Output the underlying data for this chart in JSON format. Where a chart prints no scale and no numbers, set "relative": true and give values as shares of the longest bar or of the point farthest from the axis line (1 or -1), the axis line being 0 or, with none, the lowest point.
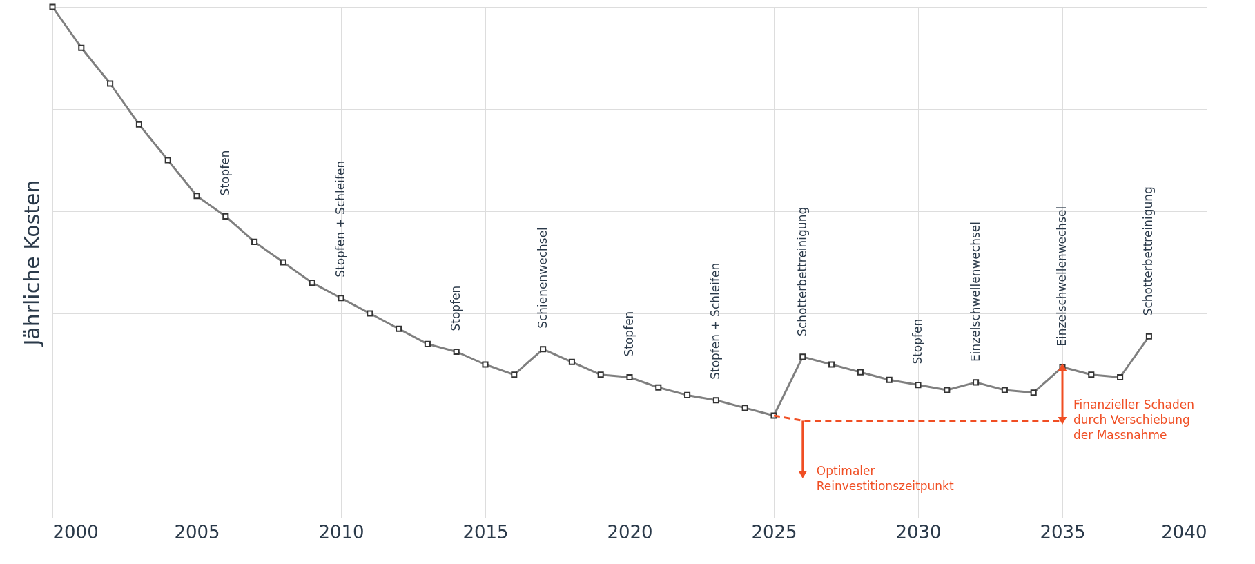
{
  "chart_data": {
    "type": "line",
    "relative": true,
    "ylabel": "Jährliche Kosten",
    "xlim": [
      2000,
      2040
    ],
    "xticks": [
      2000,
      2005,
      2010,
      2015,
      2020,
      2025,
      2030,
      2035,
      2040
    ],
    "grid": true,
    "x": [
      2000,
      2001,
      2002,
      2003,
      2004,
      2005,
      2006,
      2007,
      2008,
      2009,
      2010,
      2011,
      2012,
      2013,
      2014,
      2015,
      2016,
      2017,
      2018,
      2019,
      2020,
      2021,
      2022,
      2023,
      2024,
      2025,
      2026,
      2027,
      2028,
      2029,
      2030,
      2031,
      2032,
      2033,
      2034,
      2035,
      2036,
      2037,
      2038
    ],
    "series": [
      {
        "color": "#7f7f7f",
        "marker": "square",
        "values": [
          1,
          0.92,
          0.85,
          0.77,
          0.7,
          0.63,
          0.59,
          0.54,
          0.5,
          0.46,
          0.43,
          0.4,
          0.37,
          0.34,
          0.325,
          0.3,
          0.28,
          0.33,
          0.305,
          0.28,
          0.275,
          0.255,
          0.24,
          0.23,
          0.215,
          0.2,
          0.315,
          0.3,
          0.285,
          0.27,
          0.26,
          0.25,
          0.265,
          0.25,
          0.245,
          0.295,
          0.28,
          0.275,
          0.355
        ]
      },
      {
        "type": "line",
        "color": "#f04e23",
        "line_style": "dashed",
        "marker": "none",
        "x": [
          2025,
          2026,
          2035
        ],
        "values": [
          0.2,
          0.19,
          0.19
        ]
      }
    ],
    "annotations": [
      {
        "text": "Stopfen",
        "x": 2006,
        "y": 0.59
      },
      {
        "text": "Stopfen + Schleifen",
        "x": 2010,
        "y": 0.43
      },
      {
        "text": "Stopfen",
        "x": 2014,
        "y": 0.325
      },
      {
        "text": "Schienenwechsel",
        "x": 2017,
        "y": 0.33
      },
      {
        "text": "Stopfen",
        "x": 2020,
        "y": 0.275
      },
      {
        "text": "Stopfen + Schleifen",
        "x": 2023,
        "y": 0.23
      },
      {
        "text": "Schotterbettreinigung",
        "x": 2026,
        "y": 0.315
      },
      {
        "text": "Stopfen",
        "x": 2030,
        "y": 0.26
      },
      {
        "text": "Einzelschwellenwechsel",
        "x": 2032,
        "y": 0.265
      },
      {
        "text": "Einzelschwellenwechsel",
        "x": 2035,
        "y": 0.295
      },
      {
        "text": "Schotterbettreinigung",
        "x": 2038,
        "y": 0.355
      },
      {
        "text": "Optimaler\nReinvestitionszeitpunkt",
        "x": 2026,
        "y": 0.19
      },
      {
        "text": "Finanzieller Schaden\ndurch Verschiebung\nder Massnahme",
        "x": 2035,
        "y": 0.19
      }
    ]
  }
}
